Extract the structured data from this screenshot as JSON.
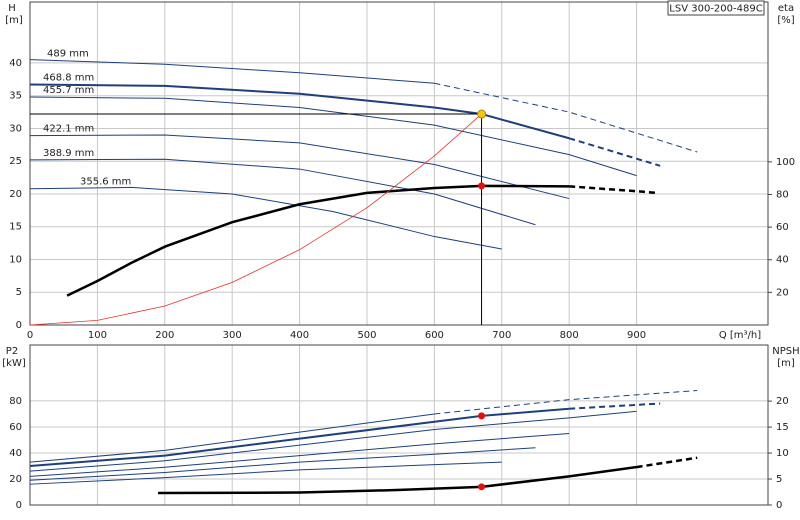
{
  "chart_data": [
    {
      "type": "line",
      "title": "LSV 300-200-489C",
      "x_label": "Q [m³/h]",
      "y_label": "H",
      "y_unit": "[m]",
      "y2_label": "eta",
      "y2_unit": "[%]",
      "xlim": [
        0,
        1095
      ],
      "xticks": [
        0,
        100,
        200,
        300,
        400,
        500,
        600,
        700,
        800,
        900
      ],
      "ylim": [
        0,
        49.3
      ],
      "yticks": [
        0,
        5,
        10,
        15,
        20,
        25,
        30,
        35,
        40
      ],
      "y2lim": [
        0,
        198
      ],
      "y2ticks": [
        20,
        40,
        60,
        80,
        100
      ],
      "grid": true,
      "series": [
        {
          "name": "489 mm",
          "color": "#1f3f7a",
          "x": [
            0,
            200,
            400,
            600,
            800,
            990
          ],
          "values": [
            40.5,
            39.8,
            38.5,
            36.9,
            32.5,
            26.4
          ],
          "dash_from": 600
        },
        {
          "name": "468.8 mm",
          "color": "#1f3f7a",
          "width": 2,
          "x": [
            0,
            200,
            400,
            600,
            670,
            800,
            935
          ],
          "values": [
            36.7,
            36.5,
            35.3,
            33.2,
            32.2,
            28.5,
            24.3
          ],
          "dash_from": 800
        },
        {
          "name": "455.7 mm",
          "color": "#1f3f7a",
          "x": [
            0,
            200,
            400,
            600,
            800,
            900
          ],
          "values": [
            34.8,
            34.6,
            33.2,
            30.5,
            26,
            22.8
          ]
        },
        {
          "name": "422.1 mm",
          "color": "#1f3f7a",
          "x": [
            0,
            200,
            400,
            600,
            800
          ],
          "values": [
            28.9,
            29,
            27.8,
            24.5,
            19.3
          ]
        },
        {
          "name": "388.9 mm",
          "color": "#1f3f7a",
          "x": [
            0,
            200,
            400,
            600,
            750
          ],
          "values": [
            25.2,
            25.3,
            23.8,
            20,
            15.3
          ]
        },
        {
          "name": "355.6 mm",
          "color": "#1f3f7a",
          "x": [
            0,
            150,
            300,
            450,
            600,
            700
          ],
          "values": [
            20.8,
            21,
            20,
            17.3,
            13.5,
            11.6
          ]
        },
        {
          "color": "#000000",
          "width": 2.5,
          "axis": "y2",
          "x": [
            55,
            100,
            150,
            200,
            300,
            400,
            500,
            600,
            670,
            800,
            900,
            930
          ],
          "values": [
            18,
            27,
            38,
            48,
            63,
            74,
            81,
            84,
            85.3,
            85,
            82,
            81
          ],
          "dash_from": 800
        },
        {
          "color": "#e53030",
          "width": 0.8,
          "x": [
            0,
            100,
            200,
            300,
            400,
            500,
            600,
            670
          ],
          "values": [
            0,
            0.7,
            2.9,
            6.5,
            11.5,
            17.9,
            25.8,
            32.2
          ]
        }
      ],
      "operating_point": {
        "x": 670,
        "y": 32.2,
        "color": "#f5c518"
      },
      "eta_point": {
        "x": 670,
        "y": 85.3,
        "color": "#e01010"
      }
    },
    {
      "type": "line",
      "y_label": "P2",
      "y_unit": "[kW]",
      "y2_label": "NPSH",
      "y2_unit": "[m]",
      "xlim": [
        0,
        1095
      ],
      "ylim": [
        0,
        123
      ],
      "yticks": [
        0,
        20,
        40,
        60,
        80
      ],
      "y2lim": [
        0,
        30.8
      ],
      "y2ticks": [
        0,
        5,
        10,
        15,
        20
      ],
      "grid": true,
      "series": [
        {
          "color": "#1f3f7a",
          "x": [
            0,
            200,
            400,
            600,
            800,
            990
          ],
          "values": [
            33,
            42,
            56,
            70,
            81,
            88
          ],
          "dash_from": 600
        },
        {
          "color": "#1f3f7a",
          "width": 2,
          "x": [
            0,
            200,
            400,
            600,
            670,
            800,
            935
          ],
          "values": [
            30,
            38,
            51,
            64,
            68.5,
            74,
            78
          ],
          "dash_from": 800
        },
        {
          "color": "#1f3f7a",
          "x": [
            0,
            200,
            400,
            600,
            800,
            900
          ],
          "values": [
            26,
            34,
            46,
            58,
            67,
            72
          ]
        },
        {
          "color": "#1f3f7a",
          "x": [
            0,
            200,
            400,
            600,
            800
          ],
          "values": [
            22,
            29,
            38,
            47,
            55
          ]
        },
        {
          "color": "#1f3f7a",
          "x": [
            0,
            200,
            400,
            600,
            750
          ],
          "values": [
            19,
            25,
            33,
            39,
            44
          ]
        },
        {
          "color": "#1f3f7a",
          "x": [
            0,
            200,
            400,
            600,
            700
          ],
          "values": [
            16,
            21,
            27,
            31,
            33
          ]
        },
        {
          "color": "#000000",
          "width": 2.5,
          "axis": "y2",
          "x": [
            190,
            400,
            550,
            670,
            800,
            900,
            990
          ],
          "values": [
            2.3,
            2.4,
            2.9,
            3.5,
            5.5,
            7.3,
            9.1
          ],
          "dash_from": 900
        }
      ],
      "points": [
        {
          "x": 670,
          "y": 68.5,
          "color": "#e01010"
        },
        {
          "x": 670,
          "y": 3.5,
          "axis": "y2",
          "color": "#e01010"
        }
      ]
    }
  ]
}
